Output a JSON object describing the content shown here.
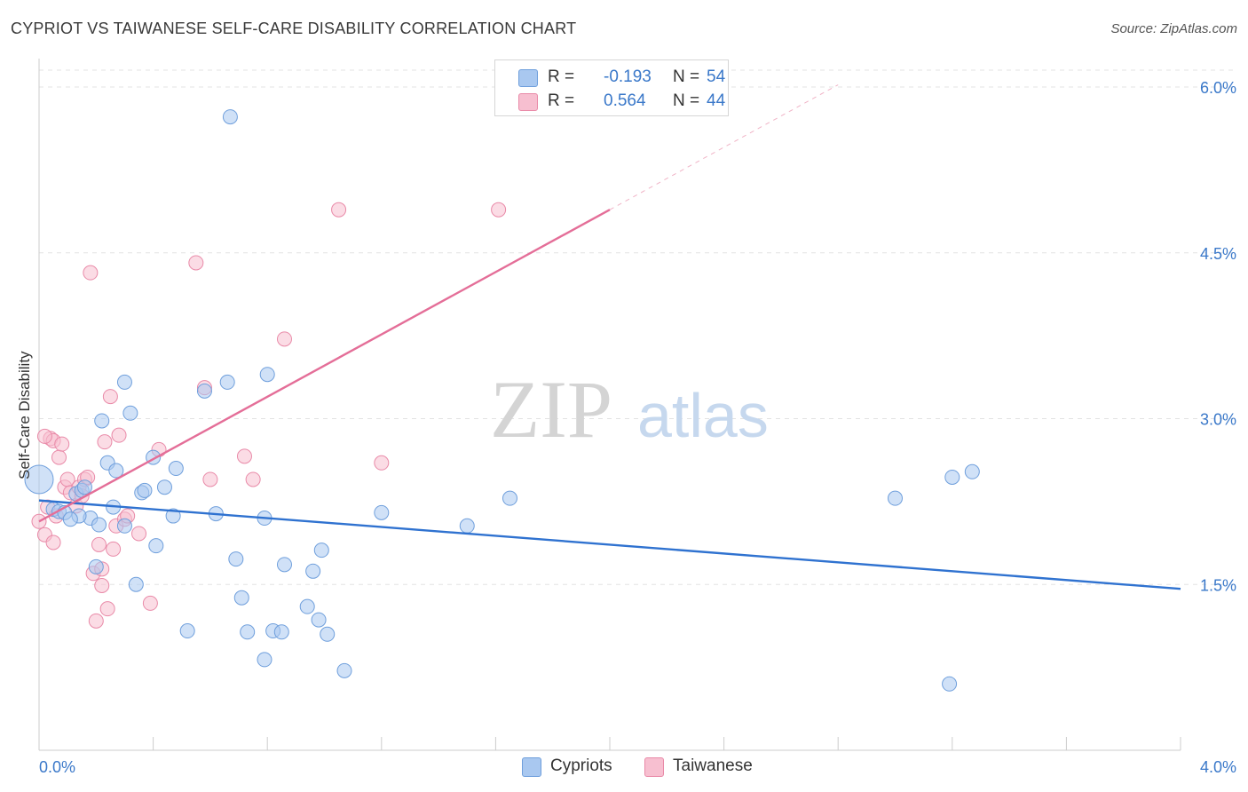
{
  "header": {
    "title": "CYPRIOT VS TAIWANESE SELF-CARE DISABILITY CORRELATION CHART",
    "source": "Source: ZipAtlas.com"
  },
  "legend": {
    "rows": [
      {
        "r_label": "R =",
        "r_value": "-0.193",
        "n_label": "N =",
        "n_value": "54"
      },
      {
        "r_label": "R =",
        "r_value": "0.564",
        "n_label": "N =",
        "n_value": "44"
      }
    ]
  },
  "bottom_legend": [
    "Cypriots",
    "Taiwanese"
  ],
  "watermark": {
    "zip": "ZIP",
    "atlas": "atlas"
  },
  "colors": {
    "blue_fill": "#a9c8f0",
    "blue_stroke": "#6f9fdc",
    "blue_line": "#2f72d0",
    "pink_fill": "#f7bfd0",
    "pink_stroke": "#e98aa8",
    "pink_line": "#e46e98",
    "tick_label": "#3a78c9",
    "grid": "#e3e3e3"
  },
  "chart_data": {
    "type": "scatter",
    "xlabel": "",
    "ylabel": "Self-Care Disability",
    "xlim": [
      0.0,
      4.0
    ],
    "ylim": [
      0.0,
      6.2
    ],
    "x_tick_labels": [
      "0.0%",
      "4.0%"
    ],
    "y_ticks": [
      1.5,
      3.0,
      4.5,
      6.0
    ],
    "y_tick_labels": [
      "1.5%",
      "3.0%",
      "4.5%",
      "6.0%"
    ],
    "grid": true,
    "legend_position": "top-center",
    "series": [
      {
        "name": "Cypriots",
        "color": "#a9c8f0",
        "points": [
          [
            0.0,
            2.45
          ],
          [
            0.05,
            2.18
          ],
          [
            0.07,
            2.16
          ],
          [
            0.09,
            2.15
          ],
          [
            0.13,
            2.32
          ],
          [
            0.15,
            2.35
          ],
          [
            0.16,
            2.38
          ],
          [
            0.18,
            2.1
          ],
          [
            0.21,
            2.04
          ],
          [
            0.22,
            2.98
          ],
          [
            0.24,
            2.6
          ],
          [
            0.26,
            2.2
          ],
          [
            0.27,
            2.53
          ],
          [
            0.3,
            2.03
          ],
          [
            0.3,
            3.33
          ],
          [
            0.32,
            3.05
          ],
          [
            0.34,
            1.5
          ],
          [
            0.36,
            2.33
          ],
          [
            0.37,
            2.35
          ],
          [
            0.4,
            2.65
          ],
          [
            0.41,
            1.85
          ],
          [
            0.44,
            2.38
          ],
          [
            0.47,
            2.12
          ],
          [
            0.48,
            2.55
          ],
          [
            0.52,
            1.08
          ],
          [
            0.62,
            2.14
          ],
          [
            0.58,
            3.25
          ],
          [
            0.66,
            3.33
          ],
          [
            0.67,
            5.73
          ],
          [
            0.69,
            1.73
          ],
          [
            0.71,
            1.38
          ],
          [
            0.73,
            1.07
          ],
          [
            0.79,
            0.82
          ],
          [
            0.79,
            2.1
          ],
          [
            0.8,
            3.4
          ],
          [
            0.82,
            1.08
          ],
          [
            0.85,
            1.07
          ],
          [
            0.86,
            1.68
          ],
          [
            0.94,
            1.3
          ],
          [
            0.96,
            1.62
          ],
          [
            0.98,
            1.18
          ],
          [
            0.99,
            1.81
          ],
          [
            1.01,
            1.05
          ],
          [
            1.07,
            0.72
          ],
          [
            1.2,
            2.15
          ],
          [
            1.5,
            2.03
          ],
          [
            1.65,
            2.28
          ],
          [
            0.14,
            2.12
          ],
          [
            3.0,
            2.28
          ],
          [
            3.2,
            2.47
          ],
          [
            3.27,
            2.52
          ],
          [
            3.19,
            0.6
          ],
          [
            0.2,
            1.66
          ],
          [
            0.11,
            2.09
          ]
        ]
      },
      {
        "name": "Taiwanese",
        "color": "#f7bfd0",
        "points": [
          [
            0.0,
            2.07
          ],
          [
            0.02,
            1.95
          ],
          [
            0.03,
            2.2
          ],
          [
            0.04,
            2.82
          ],
          [
            0.05,
            2.8
          ],
          [
            0.05,
            1.88
          ],
          [
            0.06,
            2.12
          ],
          [
            0.07,
            2.65
          ],
          [
            0.08,
            2.77
          ],
          [
            0.09,
            2.38
          ],
          [
            0.1,
            2.45
          ],
          [
            0.11,
            2.33
          ],
          [
            0.13,
            2.21
          ],
          [
            0.14,
            2.38
          ],
          [
            0.15,
            2.3
          ],
          [
            0.16,
            2.45
          ],
          [
            0.17,
            2.47
          ],
          [
            0.18,
            4.32
          ],
          [
            0.19,
            1.6
          ],
          [
            0.2,
            1.17
          ],
          [
            0.21,
            1.86
          ],
          [
            0.22,
            1.49
          ],
          [
            0.22,
            1.64
          ],
          [
            0.23,
            2.79
          ],
          [
            0.24,
            1.28
          ],
          [
            0.25,
            3.2
          ],
          [
            0.26,
            1.82
          ],
          [
            0.27,
            2.03
          ],
          [
            0.28,
            2.85
          ],
          [
            0.3,
            2.09
          ],
          [
            0.31,
            2.12
          ],
          [
            0.35,
            1.96
          ],
          [
            0.39,
            1.33
          ],
          [
            0.42,
            2.72
          ],
          [
            0.55,
            4.41
          ],
          [
            0.58,
            3.28
          ],
          [
            0.6,
            2.45
          ],
          [
            0.72,
            2.66
          ],
          [
            0.75,
            2.45
          ],
          [
            0.86,
            3.72
          ],
          [
            1.05,
            4.89
          ],
          [
            1.2,
            2.6
          ],
          [
            1.61,
            4.89
          ],
          [
            0.02,
            2.84
          ]
        ]
      }
    ],
    "trend_lines": [
      {
        "series": "Cypriots",
        "x": [
          0.0,
          4.0
        ],
        "y": [
          2.26,
          1.46
        ],
        "style": "solid"
      },
      {
        "series": "Taiwanese",
        "x": [
          0.0,
          2.0
        ],
        "y": [
          2.07,
          4.89
        ],
        "style": "solid"
      },
      {
        "series": "Taiwanese",
        "x": [
          2.0,
          2.8
        ],
        "y": [
          4.89,
          6.02
        ],
        "style": "dashed"
      }
    ]
  }
}
